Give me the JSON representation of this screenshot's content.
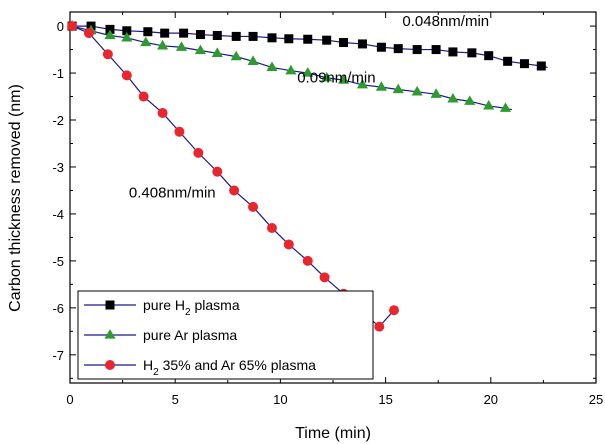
{
  "chart_data": {
    "type": "line",
    "xlabel": "Time (min)",
    "ylabel": "Carbon thickness removed (nm)",
    "xlim": [
      0,
      25
    ],
    "ylim": [
      -7.6,
      0.3
    ],
    "x_ticks": [
      0,
      5,
      10,
      15,
      20,
      25
    ],
    "y_ticks": [
      0,
      -1,
      -2,
      -3,
      -4,
      -5,
      -6,
      -7
    ],
    "x_tick_labels": [
      "0",
      "5",
      "10",
      "15",
      "20",
      "25"
    ],
    "y_tick_labels": [
      "0",
      "-1",
      "-2",
      "-3",
      "-4",
      "-5",
      "-6",
      "-7"
    ],
    "grid": false,
    "legend_position": "bottom-left",
    "series": [
      {
        "name": "pure H2 plasma",
        "legend_main": "pure H",
        "legend_sub": "2",
        "legend_tail": " plasma",
        "marker": "square",
        "marker_color": "#000000",
        "line_color": "#1a1a8c",
        "x": [
          0.1,
          1.0,
          1.9,
          2.7,
          3.7,
          4.5,
          5.4,
          6.2,
          7.0,
          7.9,
          8.7,
          9.6,
          10.4,
          11.3,
          12.2,
          13.0,
          13.9,
          14.8,
          15.6,
          16.5,
          17.4,
          18.2,
          19.1,
          19.9,
          20.8,
          21.6,
          22.4
        ],
        "y": [
          0.0,
          0.0,
          -0.07,
          -0.1,
          -0.12,
          -0.15,
          -0.15,
          -0.18,
          -0.2,
          -0.22,
          -0.22,
          -0.25,
          -0.27,
          -0.28,
          -0.3,
          -0.35,
          -0.38,
          -0.45,
          -0.48,
          -0.5,
          -0.5,
          -0.55,
          -0.57,
          -0.63,
          -0.75,
          -0.8,
          -0.85
        ]
      },
      {
        "name": "pure Ar plasma",
        "legend_main": "pure Ar plasma",
        "legend_sub": "",
        "legend_tail": "",
        "marker": "triangle",
        "marker_color": "#2e9b2e",
        "line_color": "#1a1a8c",
        "x": [
          0.1,
          1.0,
          1.9,
          2.7,
          3.6,
          4.4,
          5.3,
          6.2,
          7.0,
          7.9,
          8.7,
          9.6,
          10.5,
          11.3,
          12.2,
          13.0,
          13.9,
          14.8,
          15.6,
          16.5,
          17.4,
          18.2,
          19.0,
          19.9,
          20.7
        ],
        "y": [
          0.0,
          -0.1,
          -0.2,
          -0.25,
          -0.35,
          -0.42,
          -0.45,
          -0.52,
          -0.58,
          -0.65,
          -0.75,
          -0.88,
          -0.95,
          -1.0,
          -1.1,
          -1.15,
          -1.25,
          -1.3,
          -1.35,
          -1.4,
          -1.45,
          -1.55,
          -1.6,
          -1.7,
          -1.75
        ]
      },
      {
        "name": "H2 35% and Ar 65% plasma",
        "legend_main": "H",
        "legend_sub": "2",
        "legend_tail": " 35% and Ar 65% plasma",
        "marker": "circle",
        "marker_color": "#e8262d",
        "line_color": "#1a1a8c",
        "x": [
          0.1,
          0.9,
          1.8,
          2.7,
          3.5,
          4.4,
          5.2,
          6.1,
          7.0,
          7.8,
          8.7,
          9.6,
          10.4,
          11.3,
          12.1,
          13.0,
          13.8,
          14.7,
          15.4
        ],
        "y": [
          0.0,
          -0.15,
          -0.6,
          -1.05,
          -1.5,
          -1.85,
          -2.25,
          -2.7,
          -3.1,
          -3.5,
          -3.85,
          -4.3,
          -4.65,
          -5.0,
          -5.35,
          -5.7,
          -6.05,
          -6.4,
          -6.05
        ]
      }
    ],
    "annotations": [
      {
        "text": "0.048nm/min",
        "x": 15.8,
        "y": 0.0
      },
      {
        "text": "0.09nm/min",
        "x": 10.8,
        "y": -1.2
      },
      {
        "text": "0.408nm/min",
        "x": 2.8,
        "y": -3.65
      }
    ]
  }
}
